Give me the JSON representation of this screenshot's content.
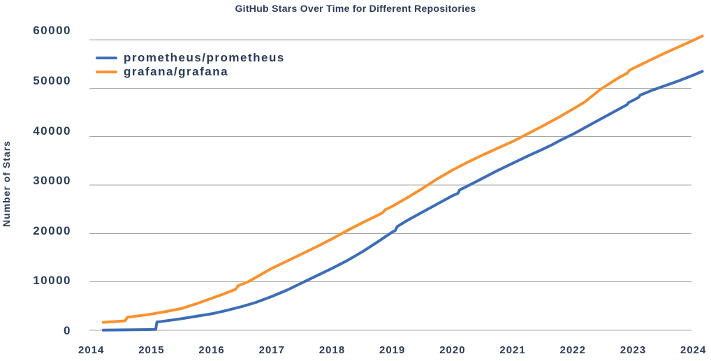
{
  "chart_data": {
    "type": "line",
    "title": "GitHub Stars Over Time for Different Repositories",
    "xlabel": "",
    "ylabel": "Number of Stars",
    "x_ticks": [
      "2014",
      "2015",
      "2016",
      "2017",
      "2018",
      "2019",
      "2020",
      "2021",
      "2022",
      "2023",
      "2024"
    ],
    "y_ticks": [
      0,
      10000,
      20000,
      30000,
      40000,
      50000,
      60000
    ],
    "xlim": [
      2013.75,
      2024.3
    ],
    "ylim": [
      0,
      62000
    ],
    "grid": "horizontal-only",
    "grid_color": "#A6A6A6",
    "text_color": "#2B3B58",
    "background_color": "#FFFFFF",
    "legend_position": "top-left",
    "series": [
      {
        "name": "prometheus/prometheus",
        "color": "#3D6DB5",
        "points": [
          [
            2014.2,
            30
          ],
          [
            2014.45,
            70
          ],
          [
            2014.7,
            110
          ],
          [
            2014.95,
            150
          ],
          [
            2015.07,
            170
          ],
          [
            2015.09,
            1700
          ],
          [
            2015.3,
            2050
          ],
          [
            2015.5,
            2400
          ],
          [
            2015.75,
            2900
          ],
          [
            2016.0,
            3400
          ],
          [
            2016.25,
            4100
          ],
          [
            2016.5,
            4900
          ],
          [
            2016.72,
            5700
          ],
          [
            2017.0,
            7000
          ],
          [
            2017.25,
            8300
          ],
          [
            2017.5,
            9800
          ],
          [
            2017.75,
            11300
          ],
          [
            2018.0,
            12800
          ],
          [
            2018.25,
            14400
          ],
          [
            2018.5,
            16200
          ],
          [
            2018.75,
            18200
          ],
          [
            2019.0,
            20300
          ],
          [
            2019.05,
            20600
          ],
          [
            2019.08,
            21400
          ],
          [
            2019.25,
            22700
          ],
          [
            2019.5,
            24400
          ],
          [
            2019.75,
            26100
          ],
          [
            2020.0,
            27800
          ],
          [
            2020.09,
            28300
          ],
          [
            2020.12,
            29000
          ],
          [
            2020.25,
            29800
          ],
          [
            2020.5,
            31400
          ],
          [
            2020.75,
            33000
          ],
          [
            2021.0,
            34500
          ],
          [
            2021.25,
            36000
          ],
          [
            2021.5,
            37400
          ],
          [
            2021.65,
            38300
          ],
          [
            2021.8,
            39300
          ],
          [
            2022.0,
            40500
          ],
          [
            2022.25,
            42200
          ],
          [
            2022.5,
            43900
          ],
          [
            2022.75,
            45600
          ],
          [
            2022.9,
            46600
          ],
          [
            2022.93,
            47100
          ],
          [
            2023.0,
            47500
          ],
          [
            2023.09,
            48100
          ],
          [
            2023.12,
            48600
          ],
          [
            2023.3,
            49500
          ],
          [
            2023.5,
            50400
          ],
          [
            2023.75,
            51500
          ],
          [
            2024.0,
            52700
          ],
          [
            2024.15,
            53500
          ]
        ]
      },
      {
        "name": "grafana/grafana",
        "color": "#F89230",
        "points": [
          [
            2014.2,
            1650
          ],
          [
            2014.4,
            1800
          ],
          [
            2014.56,
            1950
          ],
          [
            2014.6,
            2700
          ],
          [
            2014.8,
            3000
          ],
          [
            2015.0,
            3350
          ],
          [
            2015.25,
            3900
          ],
          [
            2015.5,
            4500
          ],
          [
            2015.75,
            5500
          ],
          [
            2016.0,
            6600
          ],
          [
            2016.2,
            7500
          ],
          [
            2016.4,
            8500
          ],
          [
            2016.44,
            9200
          ],
          [
            2016.6,
            10000
          ],
          [
            2016.8,
            11400
          ],
          [
            2017.0,
            12800
          ],
          [
            2017.25,
            14300
          ],
          [
            2017.5,
            15800
          ],
          [
            2017.75,
            17300
          ],
          [
            2018.0,
            18900
          ],
          [
            2018.25,
            20600
          ],
          [
            2018.5,
            22200
          ],
          [
            2018.75,
            23700
          ],
          [
            2018.84,
            24300
          ],
          [
            2018.88,
            24900
          ],
          [
            2019.0,
            25600
          ],
          [
            2019.25,
            27400
          ],
          [
            2019.5,
            29300
          ],
          [
            2019.75,
            31300
          ],
          [
            2020.0,
            33100
          ],
          [
            2020.25,
            34700
          ],
          [
            2020.5,
            36200
          ],
          [
            2020.75,
            37600
          ],
          [
            2021.0,
            39000
          ],
          [
            2021.25,
            40600
          ],
          [
            2021.5,
            42200
          ],
          [
            2021.75,
            43900
          ],
          [
            2022.0,
            45700
          ],
          [
            2022.2,
            47200
          ],
          [
            2022.45,
            49700
          ],
          [
            2022.75,
            52100
          ],
          [
            2022.9,
            53100
          ],
          [
            2022.94,
            53700
          ],
          [
            2023.0,
            54100
          ],
          [
            2023.25,
            55600
          ],
          [
            2023.5,
            57100
          ],
          [
            2023.75,
            58500
          ],
          [
            2024.0,
            59900
          ],
          [
            2024.15,
            60800
          ]
        ]
      }
    ]
  }
}
